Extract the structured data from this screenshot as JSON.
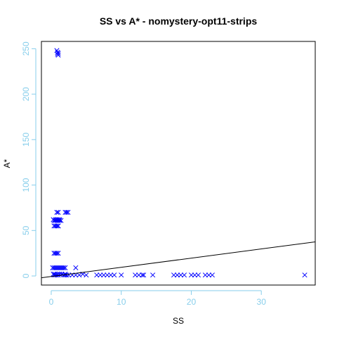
{
  "chart_data": {
    "type": "scatter",
    "title": "SS vs A* - nomystery-opt11-strips",
    "xlabel": "SS",
    "ylabel": "A*",
    "xlim": [
      -1.4,
      37.7
    ],
    "ylim": [
      -10,
      258
    ],
    "xticks": [
      0,
      10,
      20,
      30
    ],
    "yticks": [
      0,
      50,
      100,
      150,
      200,
      250
    ],
    "marker": "x",
    "marker_color": "#0000ff",
    "tick_color": "#87ceeb",
    "grid": false,
    "legend": "none",
    "x": [
      0.4,
      0.6,
      0.8,
      1.0,
      0.3,
      0.5,
      0.9,
      1.2,
      1.5,
      1.8,
      2.0,
      2.2,
      2.5,
      3.0,
      3.5,
      4.0,
      4.5,
      0.2,
      0.4,
      0.6,
      0.8,
      1.0,
      1.2,
      1.4,
      1.6,
      1.8,
      2.0,
      0.4,
      0.6,
      0.8,
      1.0,
      1.2,
      1.5,
      2.0,
      3.5,
      0.4,
      0.6,
      0.8,
      1.0,
      0.4,
      0.6,
      0.8,
      1.0,
      1.2,
      1.4,
      0.8,
      1.0,
      0.3,
      0.6,
      0.8,
      1.0,
      1.2,
      2.0,
      2.2,
      2.4,
      1.0,
      0.8,
      0.9,
      1.0,
      0.9,
      1.0,
      5.0,
      6.5,
      7.0,
      7.5,
      8.0,
      8.5,
      9.0,
      10.0,
      12.0,
      12.5,
      13.0,
      13.2,
      14.5,
      17.5,
      18.0,
      18.5,
      19.0,
      20.0,
      20.5,
      21.0,
      22.0,
      22.5,
      23.0,
      36.2
    ],
    "y": [
      1,
      1,
      1,
      1,
      2,
      2,
      2,
      2,
      2,
      1,
      1,
      1,
      1,
      1,
      1,
      1,
      2,
      9,
      9,
      9,
      9,
      9,
      9,
      9,
      9,
      9,
      9,
      25,
      25,
      25,
      25,
      2,
      2,
      2,
      9,
      55,
      55,
      55,
      55,
      61,
      61,
      61,
      61,
      61,
      61,
      70,
      70,
      62,
      62,
      62,
      62,
      62,
      70,
      70,
      70,
      55,
      248,
      246,
      245,
      244,
      243,
      1,
      1,
      1,
      1,
      1,
      1,
      1,
      1,
      1,
      1,
      1,
      1,
      1,
      1,
      1,
      1,
      1,
      1,
      1,
      1,
      1,
      1,
      1,
      1
    ],
    "fit_line": {
      "x": [
        -1.4,
        37.7
      ],
      "y": [
        -2,
        37.5
      ]
    }
  }
}
